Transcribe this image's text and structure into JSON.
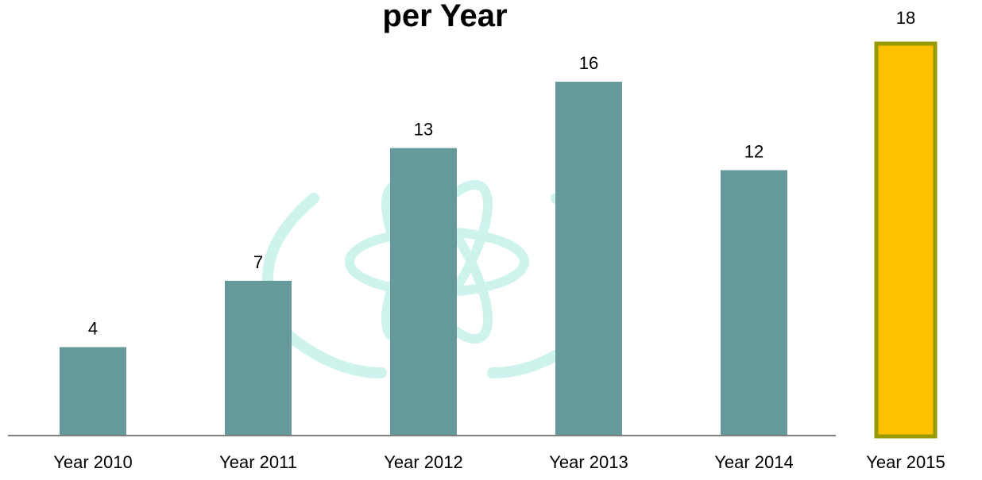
{
  "chart_data": {
    "type": "bar",
    "title": "per Year",
    "categories": [
      "Year 2010",
      "Year 2011",
      "Year 2012",
      "Year 2013",
      "Year 2014",
      "Year 2015"
    ],
    "values": [
      4,
      7,
      13,
      16,
      12,
      18
    ],
    "data_labels": [
      "4",
      "7",
      "13",
      "16",
      "12",
      "18"
    ],
    "ylim": [
      0,
      18
    ],
    "grid": false,
    "colors": {
      "bar": "#669999",
      "highlight_fill": "#ffc000",
      "highlight_stroke": "#999900",
      "axis": "#808080",
      "watermark": "#c9f2ea"
    },
    "highlight_index": 5
  },
  "watermark": {
    "icon": "atom-wreath-emblem-icon"
  }
}
